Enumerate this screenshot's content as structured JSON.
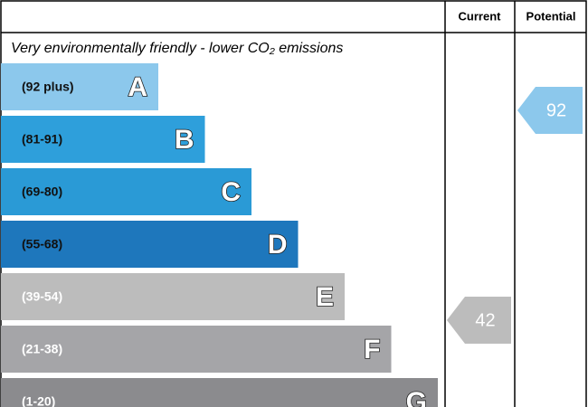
{
  "chart_data": {
    "type": "rating",
    "headers": [
      "Current",
      "Potential"
    ],
    "subtitle": "Very environmentally friendly - lower CO₂ emissions",
    "bands": [
      {
        "label": "(92 plus)",
        "letter": "A",
        "color": "#8cc8ec"
      },
      {
        "label": "(81-91)",
        "letter": "B",
        "color": "#2e9fdb"
      },
      {
        "label": "(69-80)",
        "letter": "C",
        "color": "#2a9ad6"
      },
      {
        "label": "(55-68)",
        "letter": "D",
        "color": "#1e77bc"
      },
      {
        "label": "(39-54)",
        "letter": "E",
        "color": "#bcbcbc"
      },
      {
        "label": "(21-38)",
        "letter": "F",
        "color": "#a5a5a8"
      },
      {
        "label": "(1-20)",
        "letter": "G",
        "color": "#8b8b8e"
      }
    ],
    "current": {
      "value": 42,
      "color": "#bcbcbc"
    },
    "potential": {
      "value": 92,
      "color": "#8cc8ec"
    }
  }
}
